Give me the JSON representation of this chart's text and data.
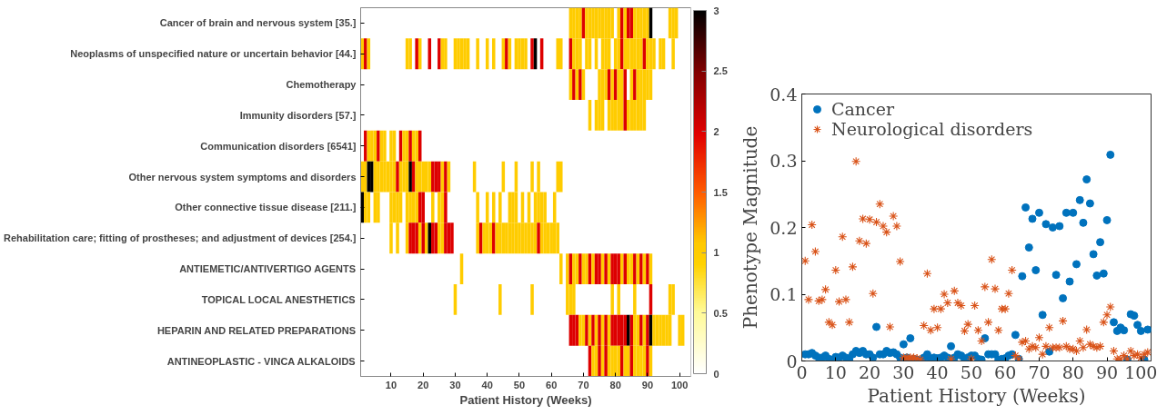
{
  "chart_data": [
    {
      "type": "heatmap",
      "xlabel": "Patient History (Weeks)",
      "y_categories": [
        "Cancer of brain and nervous system [35.]",
        "Neoplasms of unspecified nature or uncertain behavior [44.]",
        "Chemotherapy",
        "Immunity disorders [57.]",
        "Communication disorders [6541]",
        "Other nervous system symptoms and disorders",
        "Other connective tissue disease [211.]",
        "Rehabilitation care; fitting of prostheses; and adjustment of devices [254.]",
        "ANTIEMETIC/ANTIVERTIGO AGENTS",
        "TOPICAL LOCAL ANESTHETICS",
        "HEPARIN AND RELATED PREPARATIONS",
        "ANTINEOPLASTIC - VINCA ALKALOIDS"
      ],
      "x": [
        1,
        2,
        3,
        4,
        5,
        6,
        7,
        8,
        9,
        10,
        11,
        12,
        13,
        14,
        15,
        16,
        17,
        18,
        19,
        20,
        21,
        22,
        23,
        24,
        25,
        26,
        27,
        28,
        29,
        30,
        31,
        32,
        33,
        34,
        35,
        36,
        37,
        38,
        39,
        40,
        41,
        42,
        43,
        44,
        45,
        46,
        47,
        48,
        49,
        50,
        51,
        52,
        53,
        54,
        55,
        56,
        57,
        58,
        59,
        60,
        61,
        62,
        63,
        64,
        65,
        66,
        67,
        68,
        69,
        70,
        71,
        72,
        73,
        74,
        75,
        76,
        77,
        78,
        79,
        80,
        81,
        82,
        83,
        84,
        85,
        86,
        87,
        88,
        89,
        90,
        91,
        92,
        93,
        94,
        95,
        96,
        97,
        98,
        99,
        100,
        101,
        102,
        103
      ],
      "xlim": [
        0.5,
        103.5
      ],
      "xticks": [
        10,
        20,
        30,
        40,
        50,
        60,
        70,
        80,
        90,
        100
      ],
      "clim": [
        0,
        3
      ],
      "cticks": [
        0,
        0.5,
        1,
        1.5,
        2,
        2.5,
        3
      ],
      "cells": [
        [
          null,
          null,
          null,
          null,
          null,
          null,
          null,
          null,
          null,
          null,
          null,
          null,
          null,
          null,
          null,
          null,
          null,
          null,
          null,
          null,
          null,
          null,
          null,
          null,
          null,
          null,
          null,
          null,
          null,
          null,
          null,
          null,
          null,
          null,
          null,
          null,
          null,
          null,
          null,
          null,
          null,
          null,
          null,
          null,
          null,
          null,
          null,
          null,
          null,
          null,
          null,
          null,
          null,
          null,
          null,
          null,
          null,
          null,
          null,
          null,
          null,
          null,
          null,
          null,
          null,
          1,
          1,
          1,
          1,
          2,
          1,
          1,
          1,
          1,
          1,
          1,
          1,
          1,
          1,
          null,
          1,
          2,
          1,
          2,
          2,
          1,
          1,
          1,
          1,
          1,
          3,
          null,
          null,
          null,
          null,
          null,
          1,
          1,
          1,
          null,
          null,
          null,
          null
        ],
        [
          1,
          2,
          1,
          null,
          null,
          null,
          null,
          null,
          null,
          null,
          null,
          null,
          null,
          null,
          1,
          1,
          null,
          2,
          1,
          null,
          null,
          2,
          null,
          null,
          2,
          1,
          1,
          null,
          null,
          1,
          1,
          1,
          1,
          1,
          null,
          null,
          1,
          null,
          null,
          1,
          null,
          1,
          null,
          null,
          1,
          2,
          1,
          null,
          1,
          1,
          1,
          1,
          null,
          2,
          3,
          null,
          2,
          null,
          null,
          null,
          null,
          1,
          1,
          null,
          null,
          2,
          1,
          1,
          1,
          null,
          1,
          1,
          null,
          1,
          null,
          1,
          1,
          1,
          null,
          1,
          1,
          2,
          1,
          1,
          1,
          1,
          1,
          1,
          2,
          1,
          1,
          1,
          null,
          1,
          1,
          null,
          null,
          1,
          null,
          null,
          null,
          null,
          null
        ],
        [
          null,
          null,
          null,
          null,
          null,
          null,
          null,
          null,
          null,
          null,
          null,
          null,
          null,
          null,
          null,
          null,
          null,
          null,
          null,
          null,
          null,
          null,
          null,
          null,
          null,
          null,
          null,
          null,
          null,
          null,
          null,
          null,
          null,
          null,
          null,
          null,
          null,
          null,
          null,
          null,
          null,
          null,
          null,
          null,
          null,
          null,
          null,
          null,
          null,
          null,
          null,
          null,
          null,
          null,
          null,
          null,
          null,
          null,
          null,
          null,
          null,
          null,
          null,
          null,
          null,
          1,
          2,
          1,
          2,
          1,
          null,
          null,
          null,
          null,
          1,
          1,
          1,
          2,
          1,
          2,
          1,
          1,
          2,
          null,
          1,
          2,
          1,
          1,
          1,
          1,
          1,
          null,
          null,
          null,
          null,
          null,
          null,
          null,
          null,
          null,
          null,
          null,
          null
        ],
        [
          null,
          null,
          null,
          null,
          null,
          null,
          null,
          null,
          null,
          null,
          null,
          null,
          null,
          null,
          null,
          null,
          null,
          null,
          null,
          null,
          null,
          null,
          null,
          null,
          null,
          null,
          null,
          null,
          null,
          null,
          null,
          null,
          null,
          null,
          null,
          null,
          null,
          null,
          null,
          null,
          null,
          null,
          null,
          null,
          null,
          null,
          null,
          null,
          null,
          null,
          null,
          null,
          null,
          null,
          null,
          null,
          null,
          null,
          null,
          null,
          null,
          null,
          null,
          null,
          null,
          null,
          null,
          null,
          null,
          null,
          null,
          1,
          null,
          1,
          1,
          1,
          null,
          1,
          1,
          1,
          1,
          1,
          2,
          1,
          1,
          1,
          1,
          1,
          1,
          null,
          null,
          null,
          null,
          null,
          null,
          null,
          null,
          null,
          null,
          null,
          null,
          null,
          null
        ],
        [
          null,
          2,
          1,
          1,
          1,
          2,
          1,
          1,
          null,
          1,
          1,
          null,
          2,
          1,
          1,
          2,
          1,
          1,
          2,
          null,
          null,
          null,
          null,
          null,
          null,
          null,
          null,
          null,
          null,
          null,
          null,
          null,
          null,
          null,
          null,
          null,
          null,
          null,
          null,
          null,
          null,
          null,
          null,
          null,
          null,
          null,
          null,
          null,
          null,
          null,
          null,
          null,
          null,
          null,
          null,
          null,
          null,
          null,
          null,
          null,
          null,
          null,
          null,
          null,
          null,
          null,
          null,
          null,
          null,
          null,
          null,
          null,
          null,
          null,
          null,
          null,
          null,
          null,
          null,
          null,
          null,
          null,
          null,
          null,
          null,
          null,
          null,
          null,
          null,
          null,
          null,
          null,
          null,
          null,
          null,
          null,
          null,
          null,
          null,
          null,
          null,
          null,
          null
        ],
        [
          1,
          1,
          3,
          3,
          1,
          1,
          1,
          1,
          1,
          1,
          1,
          2,
          1,
          1,
          1,
          3,
          2,
          1,
          1,
          1,
          1,
          1,
          2,
          2,
          2,
          1,
          2,
          1,
          null,
          null,
          null,
          null,
          null,
          null,
          null,
          1,
          null,
          null,
          null,
          null,
          null,
          null,
          null,
          null,
          1,
          null,
          null,
          null,
          1,
          null,
          null,
          null,
          null,
          1,
          null,
          1,
          null,
          null,
          null,
          null,
          null,
          1,
          1,
          null,
          null,
          null,
          null,
          null,
          null,
          null,
          null,
          null,
          null,
          null,
          null,
          null,
          null,
          null,
          null,
          null,
          null,
          null,
          null,
          null,
          null,
          null,
          null,
          null,
          null,
          null,
          null,
          null,
          null,
          null,
          null,
          null,
          null,
          null,
          null,
          null,
          null,
          null,
          null
        ],
        [
          3,
          1,
          1,
          null,
          1,
          1,
          null,
          null,
          null,
          1,
          1,
          1,
          1,
          null,
          1,
          1,
          1,
          1,
          2,
          2,
          null,
          null,
          1,
          null,
          1,
          1,
          2,
          null,
          null,
          null,
          null,
          null,
          null,
          null,
          null,
          null,
          1,
          null,
          null,
          1,
          null,
          1,
          null,
          1,
          null,
          null,
          1,
          1,
          1,
          null,
          1,
          null,
          1,
          null,
          1,
          1,
          1,
          1,
          null,
          null,
          1,
          null,
          null,
          null,
          null,
          null,
          null,
          null,
          null,
          null,
          null,
          null,
          null,
          null,
          null,
          null,
          null,
          null,
          null,
          null,
          null,
          null,
          null,
          null,
          null,
          null,
          null,
          null,
          null,
          null,
          null,
          null,
          null,
          null,
          null,
          null,
          null,
          null,
          null,
          null,
          null,
          null,
          null
        ],
        [
          null,
          null,
          null,
          null,
          null,
          null,
          null,
          null,
          null,
          1,
          null,
          1,
          null,
          null,
          1,
          2,
          2,
          2,
          1,
          2,
          1,
          3,
          2,
          2,
          1,
          1,
          2,
          2,
          2,
          null,
          null,
          null,
          null,
          null,
          null,
          null,
          1,
          2,
          1,
          1,
          1,
          2,
          1,
          1,
          1,
          1,
          1,
          1,
          1,
          1,
          1,
          1,
          1,
          1,
          1,
          2,
          1,
          1,
          1,
          1,
          1,
          1,
          null,
          null,
          null,
          null,
          null,
          null,
          null,
          null,
          null,
          null,
          null,
          null,
          null,
          null,
          null,
          null,
          null,
          null,
          null,
          null,
          null,
          null,
          null,
          null,
          null,
          null,
          null,
          null,
          null,
          null,
          null,
          null,
          null,
          null,
          null,
          null,
          null,
          null,
          null,
          null,
          null
        ],
        [
          null,
          null,
          null,
          null,
          null,
          null,
          null,
          null,
          null,
          null,
          null,
          null,
          null,
          null,
          null,
          null,
          null,
          null,
          null,
          null,
          null,
          null,
          null,
          null,
          null,
          null,
          null,
          null,
          null,
          null,
          null,
          1,
          null,
          null,
          null,
          null,
          null,
          null,
          null,
          null,
          null,
          null,
          null,
          null,
          null,
          null,
          null,
          null,
          null,
          null,
          null,
          null,
          null,
          null,
          null,
          null,
          null,
          null,
          null,
          null,
          null,
          null,
          1,
          null,
          1,
          2,
          1,
          1,
          2,
          1,
          1,
          2,
          1,
          2,
          2,
          1,
          2,
          1,
          2,
          2,
          2,
          1,
          2,
          1,
          1,
          2,
          1,
          2,
          1,
          2,
          1,
          null,
          null,
          null,
          null,
          null,
          null,
          null,
          null,
          null,
          null,
          null,
          null
        ],
        [
          null,
          null,
          null,
          null,
          null,
          null,
          null,
          null,
          null,
          null,
          null,
          null,
          null,
          null,
          null,
          null,
          null,
          null,
          null,
          null,
          null,
          null,
          null,
          null,
          null,
          null,
          null,
          null,
          null,
          1,
          null,
          null,
          null,
          null,
          null,
          null,
          null,
          null,
          null,
          null,
          null,
          null,
          null,
          1,
          null,
          null,
          null,
          null,
          null,
          null,
          null,
          null,
          null,
          1,
          null,
          null,
          null,
          null,
          null,
          null,
          null,
          null,
          null,
          null,
          1,
          1,
          1,
          null,
          null,
          null,
          null,
          null,
          null,
          null,
          null,
          null,
          null,
          null,
          1,
          null,
          1,
          null,
          null,
          null,
          null,
          1,
          null,
          null,
          null,
          null,
          2,
          null,
          null,
          null,
          null,
          null,
          1,
          1,
          null,
          null,
          null,
          null,
          null
        ],
        [
          null,
          null,
          null,
          null,
          null,
          null,
          null,
          null,
          null,
          null,
          null,
          null,
          null,
          null,
          null,
          null,
          null,
          null,
          null,
          null,
          null,
          null,
          null,
          null,
          null,
          null,
          null,
          null,
          null,
          null,
          null,
          null,
          null,
          null,
          null,
          null,
          null,
          null,
          null,
          null,
          null,
          null,
          null,
          null,
          null,
          null,
          null,
          null,
          null,
          null,
          null,
          null,
          null,
          null,
          null,
          null,
          null,
          null,
          null,
          null,
          null,
          null,
          null,
          null,
          null,
          2,
          2,
          2,
          1,
          1,
          2,
          1,
          2,
          1,
          2,
          1,
          2,
          1,
          2,
          2,
          2,
          2,
          2,
          3,
          2,
          1,
          1,
          2,
          1,
          2,
          3,
          1,
          1,
          1,
          1,
          1,
          1,
          null,
          null,
          1,
          1,
          null,
          null
        ],
        [
          null,
          null,
          null,
          null,
          null,
          null,
          null,
          null,
          null,
          null,
          null,
          null,
          null,
          null,
          null,
          null,
          null,
          null,
          null,
          null,
          null,
          null,
          null,
          null,
          null,
          null,
          null,
          null,
          null,
          null,
          null,
          null,
          null,
          null,
          null,
          null,
          null,
          null,
          null,
          null,
          null,
          null,
          null,
          null,
          null,
          null,
          null,
          null,
          null,
          null,
          null,
          null,
          null,
          null,
          null,
          null,
          null,
          null,
          null,
          null,
          null,
          null,
          null,
          null,
          null,
          null,
          null,
          null,
          null,
          null,
          null,
          2,
          1,
          1,
          2,
          1,
          2,
          1,
          1,
          1,
          1,
          2,
          1,
          1,
          2,
          1,
          1,
          1,
          1,
          2,
          1,
          null,
          null,
          null,
          null,
          null,
          null,
          null,
          null,
          null,
          null,
          null,
          null
        ]
      ]
    },
    {
      "type": "scatter",
      "xlabel": "Patient History (Weeks)",
      "ylabel": "Phenotype Magnitude",
      "xlim": [
        0,
        103
      ],
      "xticks": [
        0,
        10,
        20,
        30,
        40,
        50,
        60,
        70,
        80,
        90,
        100
      ],
      "ylim": [
        0,
        0.4
      ],
      "yticks": [
        0,
        0.1,
        0.2,
        0.3,
        0.4
      ],
      "legend": "top left",
      "grid": false,
      "x": [
        1,
        2,
        3,
        4,
        5,
        6,
        7,
        8,
        9,
        10,
        11,
        12,
        13,
        14,
        15,
        16,
        17,
        18,
        19,
        20,
        21,
        22,
        23,
        24,
        25,
        26,
        27,
        28,
        29,
        30,
        31,
        32,
        33,
        34,
        35,
        36,
        37,
        38,
        39,
        40,
        41,
        42,
        43,
        44,
        45,
        46,
        47,
        48,
        49,
        50,
        51,
        52,
        53,
        54,
        55,
        56,
        57,
        58,
        59,
        60,
        61,
        62,
        63,
        64,
        65,
        66,
        67,
        68,
        69,
        70,
        71,
        72,
        73,
        74,
        75,
        76,
        77,
        78,
        79,
        80,
        81,
        82,
        83,
        84,
        85,
        86,
        87,
        88,
        89,
        90,
        91,
        92,
        93,
        94,
        95,
        96,
        97,
        98,
        99,
        100,
        101,
        102
      ],
      "series": [
        {
          "name": "Cancer",
          "color": "#0072bd",
          "marker": "circle",
          "values": [
            0.01,
            0.01,
            0.012,
            0.008,
            0.005,
            0.005,
            0.008,
            0.003,
            0.002,
            0.006,
            0.005,
            0.008,
            0.005,
            0.002,
            0.01,
            0.015,
            0.012,
            0.015,
            0.01,
            0.01,
            0.005,
            0.051,
            0.01,
            0.01,
            0.015,
            0.012,
            0.013,
            0.01,
            0.005,
            0.025,
            0.005,
            0.034,
            0.003,
            0.002,
            null,
            0.005,
            0.01,
            0.003,
            0.005,
            0.004,
            0.005,
            0.008,
            0.005,
            0.022,
            0.005,
            0.01,
            0.008,
            0.003,
            0.005,
            0.008,
            0.008,
            0.003,
            0.002,
            0.034,
            0.01,
            0.01,
            0.01,
            0.002,
            0.003,
            0.004,
            0.008,
            0.01,
            0.039,
            0.003,
            0.127,
            0.23,
            0.17,
            0.213,
            0.136,
            0.222,
            0.069,
            0.205,
            0.014,
            0.2,
            0.129,
            0.202,
            0.094,
            0.222,
            0.119,
            0.222,
            0.145,
            0.241,
            0.207,
            0.272,
            0.236,
            0.16,
            0.128,
            0.178,
            0.131,
            0.211,
            0.309,
            0.058,
            0.045,
            0.05,
            0.046,
            0.002,
            0.07,
            0.068,
            0.054,
            0.045,
            0.002,
            0.047
          ]
        },
        {
          "name": "Neurological disorders",
          "color": "#d95319",
          "marker": "cross",
          "values": [
            0.15,
            0.092,
            0.204,
            0.164,
            0.09,
            0.092,
            0.107,
            0.058,
            0.054,
            0.136,
            0.089,
            0.186,
            0.092,
            0.058,
            0.141,
            0.299,
            0.18,
            0.213,
            0.176,
            0.212,
            0.101,
            0.208,
            0.235,
            0.202,
            0.193,
            0.051,
            0.217,
            0.202,
            0.149,
            0.005,
            0.005,
            0.005,
            0.005,
            0.004,
            0.002,
            0.053,
            0.131,
            0.046,
            0.078,
            0.05,
            0.078,
            0.1,
            0.087,
            0.003,
            0.105,
            0.087,
            0.083,
            0.045,
            0.055,
            0.003,
            0.083,
            0.046,
            0.03,
            0.111,
            0.058,
            0.152,
            0.108,
            0.046,
            0.078,
            0.078,
            0.101,
            0.136,
            0.008,
            0.003,
            0.028,
            0.03,
            0.018,
            0.022,
            0.02,
            0.035,
            0.01,
            0.022,
            0.05,
            0.02,
            0.02,
            0.02,
            0.06,
            0.022,
            0.018,
            0.018,
            0.015,
            0.03,
            0.02,
            0.047,
            0.025,
            0.022,
            0.02,
            0.022,
            0.058,
            0.069,
            0.081,
            0.015,
            0.003,
            0.003,
            0.008,
            0.003,
            0.015,
            0.008,
            0.01,
            0.005,
            0.01,
            0.013
          ]
        }
      ]
    }
  ]
}
